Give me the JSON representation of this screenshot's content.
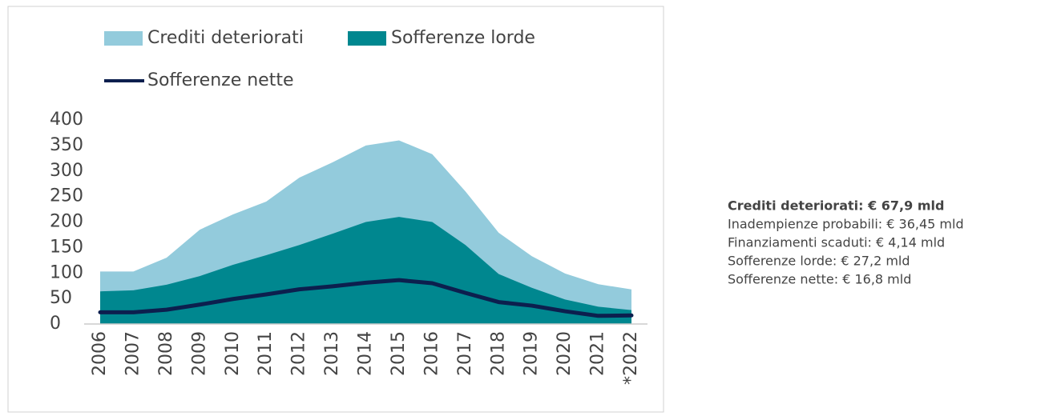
{
  "chart_data": {
    "type": "area",
    "categories": [
      "2006",
      "2007",
      "2008",
      "2009",
      "2010",
      "2011",
      "2012",
      "2013",
      "2014",
      "2015",
      "2016",
      "2017",
      "2018",
      "2019",
      "2020",
      "2021",
      "*2022"
    ],
    "series": [
      {
        "name": "Crediti deteriorati",
        "type": "area",
        "color": "#93cbdc",
        "values": [
          103,
          103,
          130,
          185,
          215,
          240,
          287,
          317,
          350,
          360,
          333,
          260,
          179,
          133,
          99,
          78,
          67.9
        ]
      },
      {
        "name": "Sofferenze lorde",
        "type": "area",
        "color": "#00878f",
        "values": [
          64,
          66,
          77,
          94,
          116,
          135,
          155,
          177,
          200,
          210,
          200,
          155,
          98,
          71,
          48,
          34,
          27.2
        ]
      },
      {
        "name": "Sofferenze nette",
        "type": "line",
        "color": "#0c1f4e",
        "values": [
          23,
          23,
          28,
          38,
          49,
          58,
          68,
          74,
          81,
          86,
          80,
          61,
          43,
          36,
          25,
          16,
          16.8
        ]
      }
    ],
    "ylim": [
      0,
      400
    ],
    "yticks": [
      0,
      50,
      100,
      150,
      200,
      250,
      300,
      350,
      400
    ],
    "annotations": [
      "Crediti deteriorati: € 67,9 mld",
      "Inadempienze probabili: € 36,45 mld",
      "Finanziamenti scaduti: € 4,14 mld",
      "Sofferenze lorde: € 27,2 mld",
      "Sofferenze nette: € 16,8 mld"
    ]
  }
}
